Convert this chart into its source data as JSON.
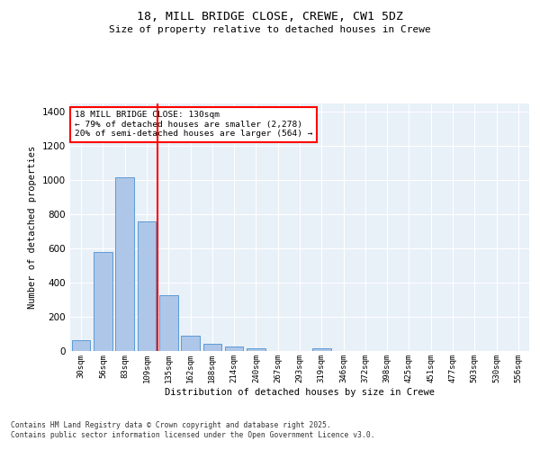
{
  "title_line1": "18, MILL BRIDGE CLOSE, CREWE, CW1 5DZ",
  "title_line2": "Size of property relative to detached houses in Crewe",
  "xlabel": "Distribution of detached houses by size in Crewe",
  "ylabel": "Number of detached properties",
  "categories": [
    "30sqm",
    "56sqm",
    "83sqm",
    "109sqm",
    "135sqm",
    "162sqm",
    "188sqm",
    "214sqm",
    "240sqm",
    "267sqm",
    "293sqm",
    "319sqm",
    "346sqm",
    "372sqm",
    "398sqm",
    "425sqm",
    "451sqm",
    "477sqm",
    "503sqm",
    "530sqm",
    "556sqm"
  ],
  "values": [
    65,
    578,
    1020,
    760,
    325,
    90,
    40,
    25,
    15,
    0,
    0,
    15,
    0,
    0,
    0,
    0,
    0,
    0,
    0,
    0,
    0
  ],
  "bar_color": "#aec6e8",
  "bar_edgecolor": "#5b9bd5",
  "annotation_line1": "18 MILL BRIDGE CLOSE: 130sqm",
  "annotation_line2": "← 79% of detached houses are smaller (2,278)",
  "annotation_line3": "20% of semi-detached houses are larger (564) →",
  "ylim": [
    0,
    1450
  ],
  "yticks": [
    0,
    200,
    400,
    600,
    800,
    1000,
    1200,
    1400
  ],
  "bg_color": "#e8f0f8",
  "grid_color": "#ffffff",
  "footer_line1": "Contains HM Land Registry data © Crown copyright and database right 2025.",
  "footer_line2": "Contains public sector information licensed under the Open Government Licence v3.0."
}
